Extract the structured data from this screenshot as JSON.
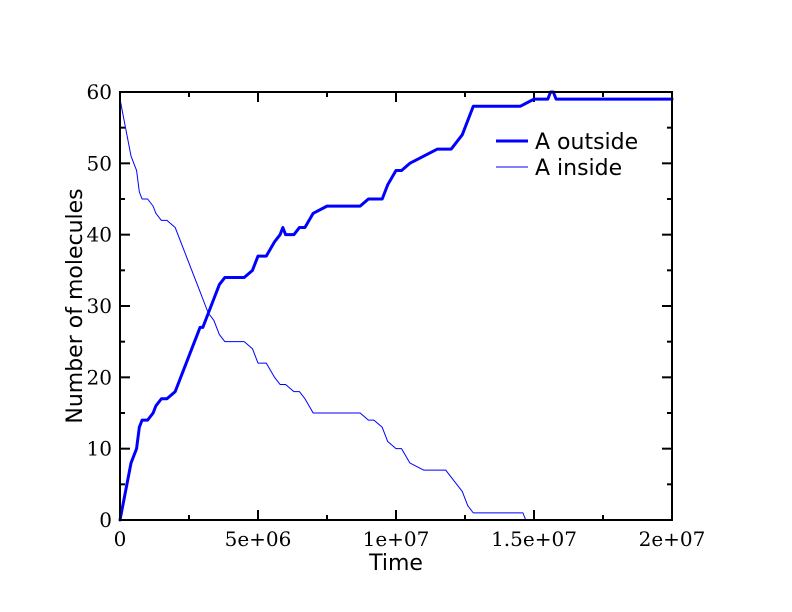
{
  "chart_data": {
    "type": "line",
    "title": "",
    "xlabel": "Time",
    "ylabel": "Number of molecules",
    "xlim": [
      0,
      20000000
    ],
    "ylim": [
      0,
      60
    ],
    "xticks": [
      0,
      5000000,
      10000000,
      15000000,
      20000000
    ],
    "xtick_labels": [
      "0",
      "5e+06",
      "1e+07",
      "1.5e+07",
      "2e+07"
    ],
    "yticks": [
      0,
      10,
      20,
      30,
      40,
      50,
      60
    ],
    "ytick_labels": [
      "0",
      "10",
      "20",
      "30",
      "40",
      "50",
      "60"
    ],
    "grid": false,
    "legend_position": "top-right",
    "series": [
      {
        "name": "A outside",
        "color": "#0000ff",
        "line_width": "thick",
        "x": [
          0,
          200000,
          400000,
          600000,
          700000,
          800000,
          1000000,
          1200000,
          1300000,
          1500000,
          1700000,
          2000000,
          2200000,
          2500000,
          2700000,
          2900000,
          3000000,
          3200000,
          3400000,
          3600000,
          3800000,
          4000000,
          4500000,
          4800000,
          5000000,
          5300000,
          5600000,
          5800000,
          5900000,
          6000000,
          6300000,
          6500000,
          6700000,
          7000000,
          7500000,
          8000000,
          8500000,
          8700000,
          9000000,
          9200000,
          9500000,
          9700000,
          10000000,
          10200000,
          10500000,
          11000000,
          11500000,
          11800000,
          12000000,
          12200000,
          12400000,
          12600000,
          12800000,
          13200000,
          14000000,
          14500000,
          15000000,
          15500000,
          15600000,
          15700000,
          15800000,
          16500000,
          18000000,
          20000000
        ],
        "values": [
          0,
          4,
          8,
          10,
          13,
          14,
          14,
          15,
          16,
          17,
          17,
          18,
          20,
          23,
          25,
          27,
          27,
          29,
          31,
          33,
          34,
          34,
          34,
          35,
          37,
          37,
          39,
          40,
          41,
          40,
          40,
          41,
          41,
          43,
          44,
          44,
          44,
          44,
          45,
          45,
          45,
          47,
          49,
          49,
          50,
          51,
          52,
          52,
          52,
          53,
          54,
          56,
          58,
          58,
          58,
          58,
          59,
          59,
          60,
          60,
          59,
          59,
          59,
          59
        ]
      },
      {
        "name": "A inside",
        "color": "#0000ff",
        "line_width": "thin",
        "x": [
          0,
          200000,
          400000,
          600000,
          700000,
          800000,
          1000000,
          1200000,
          1300000,
          1500000,
          1700000,
          2000000,
          2200000,
          2500000,
          2700000,
          2900000,
          3000000,
          3200000,
          3400000,
          3600000,
          3800000,
          4000000,
          4500000,
          4800000,
          5000000,
          5300000,
          5600000,
          5800000,
          5900000,
          6000000,
          6300000,
          6500000,
          6700000,
          7000000,
          7500000,
          8000000,
          8500000,
          8700000,
          9000000,
          9200000,
          9500000,
          9700000,
          10000000,
          10200000,
          10500000,
          11000000,
          11500000,
          11800000,
          12000000,
          12200000,
          12400000,
          12600000,
          12800000,
          13200000,
          14000000,
          14500000,
          14600000,
          14700000
        ],
        "values": [
          59,
          55,
          51,
          49,
          46,
          45,
          45,
          44,
          43,
          42,
          42,
          41,
          39,
          36,
          34,
          32,
          31,
          29,
          28,
          26,
          25,
          25,
          25,
          24,
          22,
          22,
          20,
          19,
          19,
          19,
          18,
          18,
          17,
          15,
          15,
          15,
          15,
          15,
          14,
          14,
          13,
          11,
          10,
          10,
          8,
          7,
          7,
          7,
          6,
          5,
          4,
          2,
          1,
          1,
          1,
          1,
          1,
          0
        ]
      }
    ]
  }
}
